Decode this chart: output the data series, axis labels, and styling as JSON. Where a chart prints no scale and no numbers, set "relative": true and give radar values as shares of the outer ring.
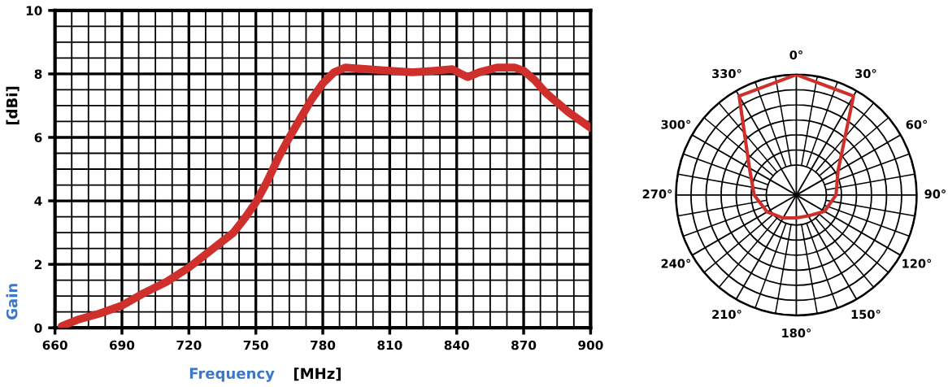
{
  "chart_data": [
    {
      "type": "line",
      "xlabel": "Frequency [MHz]",
      "ylabel": "Gain [dBi]",
      "x": [
        663,
        670,
        680,
        690,
        700,
        710,
        720,
        730,
        740,
        745,
        750,
        755,
        760,
        765,
        770,
        775,
        780,
        785,
        790,
        800,
        810,
        820,
        830,
        838,
        842,
        845,
        850,
        858,
        866,
        870,
        875,
        880,
        890,
        900
      ],
      "series": [
        {
          "color": "#d0302b",
          "values": [
            0.05,
            0.25,
            0.45,
            0.7,
            1.1,
            1.45,
            1.9,
            2.45,
            3.0,
            3.45,
            3.95,
            4.6,
            5.35,
            6.0,
            6.6,
            7.2,
            7.7,
            8.05,
            8.2,
            8.15,
            8.1,
            8.05,
            8.1,
            8.15,
            8.0,
            7.9,
            8.05,
            8.2,
            8.2,
            8.1,
            7.8,
            7.4,
            6.8,
            6.3
          ]
        }
      ],
      "xlim": [
        660,
        900
      ],
      "xticks": [
        660,
        {
          "value": 667.5,
          "label": null
        },
        {
          "value": 675,
          "label": null
        },
        {
          "value": 682.5,
          "label": null
        },
        690,
        {
          "value": 697.5,
          "label": null
        },
        {
          "value": 705,
          "label": null
        },
        {
          "value": 712.5,
          "label": null
        },
        720,
        {
          "value": 727.5,
          "label": null
        },
        {
          "value": 735,
          "label": null
        },
        {
          "value": 742.5,
          "label": null
        },
        750,
        {
          "value": 757.5,
          "label": null
        },
        {
          "value": 765,
          "label": null
        },
        {
          "value": 772.5,
          "label": null
        },
        780,
        {
          "value": 787.5,
          "label": null
        },
        {
          "value": 795,
          "label": null
        },
        {
          "value": 802.5,
          "label": null
        },
        810,
        {
          "value": 817.5,
          "label": null
        },
        {
          "value": 825,
          "label": null
        },
        {
          "value": 832.5,
          "label": null
        },
        840,
        {
          "value": 847.5,
          "label": null
        },
        {
          "value": 855,
          "label": null
        },
        {
          "value": 862.5,
          "label": null
        },
        870,
        {
          "value": 877.5,
          "label": null
        },
        {
          "value": 885,
          "label": null
        },
        {
          "value": 892.5,
          "label": null
        },
        900
      ],
      "ylim": [
        0,
        10
      ],
      "yticks": [
        0,
        {
          "value": 0.5,
          "label": null
        },
        {
          "value": 1,
          "label": null
        },
        {
          "value": 1.5,
          "label": null
        },
        2,
        {
          "value": 2.5,
          "label": null
        },
        {
          "value": 3,
          "label": null
        },
        {
          "value": 3.5,
          "label": null
        },
        4,
        {
          "value": 4.5,
          "label": null
        },
        {
          "value": 5,
          "label": null
        },
        {
          "value": 5.5,
          "label": null
        },
        6,
        {
          "value": 6.5,
          "label": null
        },
        {
          "value": 7,
          "label": null
        },
        {
          "value": 7.5,
          "label": null
        },
        8,
        {
          "value": 8.5,
          "label": null
        },
        {
          "value": 9,
          "label": null
        },
        {
          "value": 9.5,
          "label": null
        },
        10
      ],
      "grid": true,
      "marker": "none",
      "line_style": "solid"
    },
    {
      "type": "radar",
      "relative": true,
      "grid": true,
      "categories": [
        "0°",
        "30°",
        "60°",
        "90°",
        "120°",
        "150°",
        "180°",
        "210°",
        "240°",
        "270°",
        "300°",
        "330°"
      ],
      "series": [
        {
          "color": "#d0302b",
          "values": [
            1.0,
            0.95,
            0.4,
            0.33,
            0.27,
            0.2,
            0.19,
            0.22,
            0.28,
            0.35,
            0.45,
            0.95
          ]
        }
      ]
    }
  ]
}
